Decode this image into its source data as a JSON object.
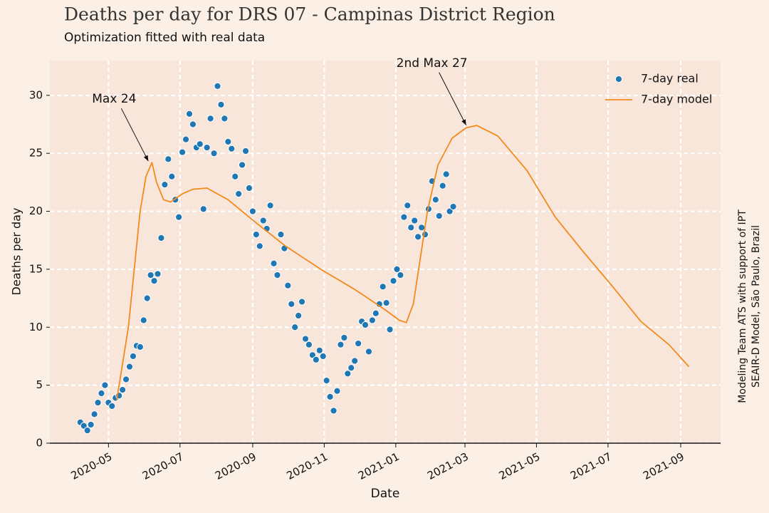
{
  "chart_data": {
    "type": "line",
    "title": "Deaths per day for DRS 07 - Campinas District Region",
    "subtitle": "Optimization fitted with real data",
    "xlabel": "Date",
    "ylabel": "Deaths per day",
    "side_note": [
      "Modeling Team ATS with support of IPT",
      "SEAIR-D Model, São Paulo, Brazil"
    ],
    "xlim": [
      -50,
      522
    ],
    "ylim": [
      0,
      33
    ],
    "xticks": [
      {
        "value": 0,
        "label": "2020-05"
      },
      {
        "value": 61,
        "label": "2020-07"
      },
      {
        "value": 123,
        "label": "2020-09"
      },
      {
        "value": 184,
        "label": "2020-11"
      },
      {
        "value": 245,
        "label": "2021-01"
      },
      {
        "value": 304,
        "label": "2021-03"
      },
      {
        "value": 365,
        "label": "2021-05"
      },
      {
        "value": 426,
        "label": "2021-07"
      },
      {
        "value": 488,
        "label": "2021-09"
      }
    ],
    "yticks": [
      0,
      5,
      10,
      15,
      20,
      25,
      30
    ],
    "grid": true,
    "legend": "upper right",
    "series": [
      {
        "name": "7-day real",
        "type": "scatter",
        "color": "#1f77b4",
        "x": [
          -24,
          -21,
          -18,
          -15,
          -12,
          -9,
          -6,
          -3,
          0,
          3,
          6,
          9,
          12,
          15,
          18,
          21,
          24,
          27,
          30,
          33,
          36,
          39,
          42,
          45,
          48,
          51,
          54,
          57,
          60,
          63,
          66,
          69,
          72,
          75,
          78,
          81,
          84,
          87,
          90,
          93,
          96,
          99,
          102,
          105,
          108,
          111,
          114,
          117,
          120,
          123,
          126,
          129,
          132,
          135,
          138,
          141,
          144,
          147,
          150,
          153,
          156,
          159,
          162,
          165,
          168,
          171,
          174,
          177,
          180,
          183,
          186,
          189,
          192,
          195,
          198,
          201,
          204,
          207,
          210,
          213,
          216,
          219,
          222,
          225,
          228,
          231,
          234,
          237,
          240,
          243,
          246,
          249,
          252,
          255,
          258,
          261,
          264,
          267,
          270,
          273,
          276,
          279,
          282,
          285,
          288,
          291,
          294
        ],
        "values": [
          1.8,
          1.5,
          1.1,
          1.6,
          2.5,
          3.5,
          4.3,
          5.0,
          3.5,
          3.2,
          3.9,
          4.1,
          4.6,
          5.5,
          6.6,
          7.5,
          8.4,
          8.3,
          10.6,
          12.5,
          14.5,
          14.0,
          14.6,
          17.7,
          22.3,
          24.5,
          23.0,
          21.0,
          19.5,
          25.1,
          26.2,
          28.4,
          27.5,
          25.5,
          25.8,
          20.2,
          25.5,
          28.0,
          25.0,
          30.8,
          29.2,
          28.0,
          26.0,
          25.4,
          23.0,
          21.5,
          24.0,
          25.2,
          22.0,
          20.0,
          18.0,
          17.0,
          19.2,
          18.5,
          20.5,
          15.5,
          14.5,
          18.0,
          16.8,
          13.6,
          12.0,
          10.0,
          11.0,
          12.2,
          9.0,
          8.5,
          7.6,
          7.2,
          8.0,
          7.5,
          5.4,
          4.0,
          2.8,
          4.5,
          8.5,
          9.1,
          6.0,
          6.5,
          7.1,
          8.6,
          10.5,
          10.2,
          7.9,
          10.6,
          11.2,
          12.0,
          13.5,
          12.1,
          9.8,
          14.0,
          15.0,
          14.5,
          19.5,
          20.5,
          18.6,
          19.2,
          17.8,
          18.6,
          18.0,
          20.2,
          22.6,
          21.0,
          19.6,
          22.2,
          23.2,
          20.0,
          20.4
        ]
      },
      {
        "name": "7-day model",
        "type": "line",
        "color": "#f28a1e",
        "x": [
          7,
          17,
          23,
          27,
          32,
          37,
          41,
          47,
          53,
          63,
          72,
          84,
          102,
          126,
          151,
          181,
          211,
          236,
          248,
          254,
          260,
          266,
          272,
          281,
          293,
          305,
          314,
          332,
          357,
          381,
          405,
          430,
          454,
          478,
          495
        ],
        "values": [
          3.7,
          10,
          16,
          20,
          23,
          24.2,
          22.5,
          21,
          20.8,
          21.5,
          21.9,
          22,
          21,
          19,
          17,
          15,
          13.2,
          11.5,
          10.6,
          10.4,
          12,
          16,
          20,
          24,
          26.3,
          27.2,
          27.4,
          26.5,
          23.5,
          19.5,
          16.5,
          13.5,
          10.5,
          8.5,
          6.6
        ]
      }
    ],
    "annotations": [
      {
        "text": "Max 24",
        "x": 34,
        "y": 24.2
      },
      {
        "text": "2nd Max 27",
        "x": 305,
        "y": 27.3
      }
    ]
  }
}
